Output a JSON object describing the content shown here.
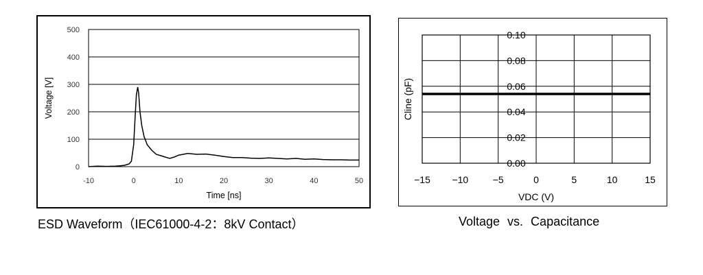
{
  "captions": {
    "esd": "ESD Waveform（IEC61000-4-2：8kV Contact）",
    "cv": "Voltage  vs.  Capacitance"
  },
  "chart_data": [
    {
      "type": "line",
      "xlabel": "Time [ns]",
      "ylabel": "Voltage [V]",
      "xlim": [
        -10,
        50
      ],
      "ylim": [
        0,
        500
      ],
      "xticks": [
        "-10",
        "0",
        "10",
        "20",
        "30",
        "40",
        "50"
      ],
      "yticks": [
        "0",
        "100",
        "200",
        "300",
        "400",
        "500"
      ],
      "grid": "horizontal",
      "series": [
        {
          "x": [
            -10,
            -8,
            -6,
            -4,
            -3,
            -2,
            -1,
            -0.5,
            0,
            0.3,
            0.6,
            0.9,
            1.1,
            1.4,
            1.8,
            2.3,
            3,
            4,
            5,
            6,
            7,
            8,
            9,
            10,
            12,
            14,
            16,
            18,
            20,
            22,
            24,
            26,
            28,
            30,
            32,
            34,
            36,
            38,
            40,
            42,
            44,
            46,
            48,
            50
          ],
          "y": [
            0,
            2,
            1,
            2,
            3,
            5,
            10,
            20,
            80,
            170,
            260,
            290,
            270,
            200,
            150,
            110,
            80,
            60,
            45,
            40,
            35,
            30,
            35,
            42,
            48,
            45,
            46,
            42,
            37,
            33,
            33,
            31,
            30,
            32,
            30,
            28,
            30,
            27,
            28,
            26,
            25,
            25,
            24,
            24
          ],
          "color": "#000000"
        }
      ]
    },
    {
      "type": "line",
      "xlabel": "VDC (V)",
      "ylabel": "Cline (pF)",
      "xlim": [
        -15,
        15
      ],
      "ylim": [
        0,
        0.1
      ],
      "xticks": [
        "−15",
        "−10",
        "−5",
        "0",
        "5",
        "10",
        "15"
      ],
      "yticks": [
        "0.00",
        "0.02",
        "0.04",
        "0.06",
        "0.08",
        "0.10"
      ],
      "grid": "both",
      "series": [
        {
          "x": [
            -15,
            15
          ],
          "y": [
            0.054,
            0.054
          ],
          "color": "#000000"
        }
      ]
    }
  ]
}
